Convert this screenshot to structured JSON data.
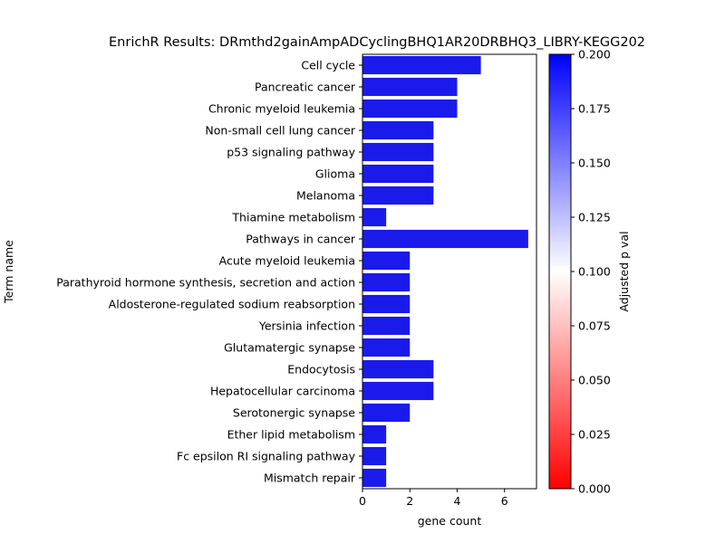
{
  "chart_data": {
    "type": "bar",
    "orientation": "horizontal",
    "title": "EnrichR Results: DRmthd2gainAmpADCyclingBHQ1AR20DRBHQ3_LIBRY-KEGG202",
    "xlabel": "gene count",
    "ylabel": "Term name",
    "xlim": [
      0,
      7.35
    ],
    "xticks": [
      "0",
      "2",
      "4",
      "6"
    ],
    "categories": [
      "Cell cycle",
      "Pancreatic cancer",
      "Chronic myeloid leukemia",
      "Non-small cell lung cancer",
      "p53 signaling pathway",
      "Glioma",
      "Melanoma",
      "Thiamine metabolism",
      "Pathways in cancer",
      "Acute myeloid leukemia",
      "Parathyroid hormone synthesis, secretion and action",
      "Aldosterone-regulated sodium reabsorption",
      "Yersinia infection",
      "Glutamatergic synapse",
      "Endocytosis",
      "Hepatocellular carcinoma",
      "Serotonergic synapse",
      "Ether lipid metabolism",
      "Fc epsilon RI signaling pathway",
      "Mismatch repair"
    ],
    "values": [
      5,
      4,
      4,
      3,
      3,
      3,
      3,
      1,
      7,
      2,
      2,
      2,
      2,
      2,
      3,
      3,
      2,
      1,
      1,
      1
    ],
    "bar_color": "#1a1aeb",
    "colorbar": {
      "label": "Adjusted p val",
      "range": [
        0,
        0.2
      ],
      "ticks": [
        "0.000",
        "0.025",
        "0.050",
        "0.075",
        "0.100",
        "0.125",
        "0.150",
        "0.175",
        "0.200"
      ],
      "colormap": [
        "#ff0000",
        "#ffffff",
        "#0000ff"
      ]
    },
    "grid": false,
    "legend": "none"
  }
}
